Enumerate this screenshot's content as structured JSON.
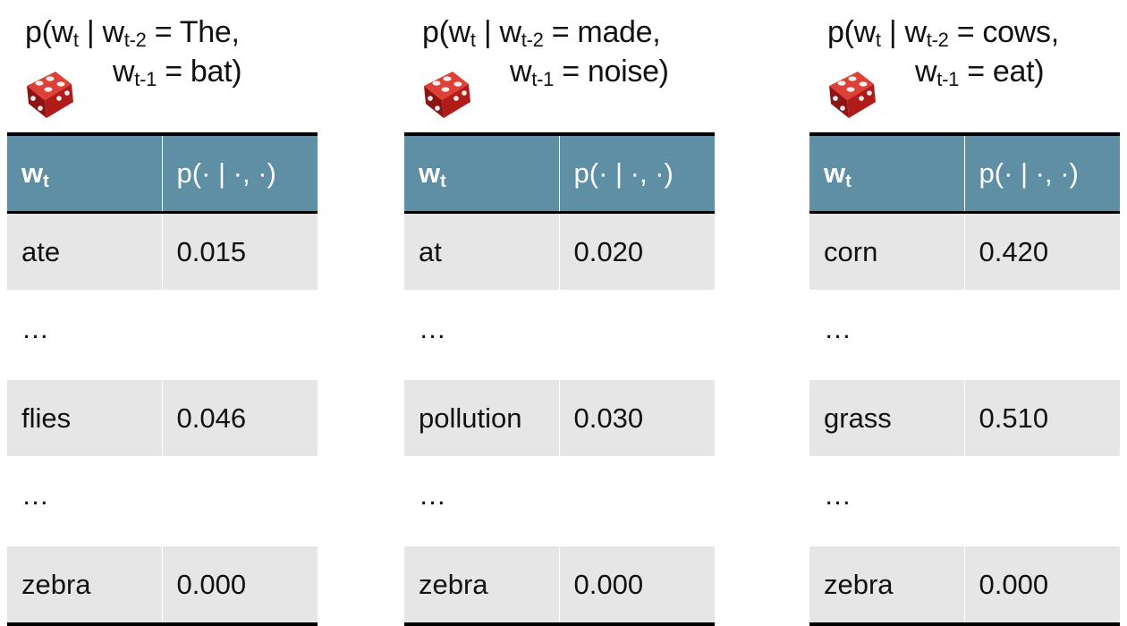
{
  "panels": [
    {
      "title": {
        "prefix": "p(w",
        "sub_t": "t",
        "bar": " | w",
        "sub_t2": "t-2",
        "val2": " = The,",
        "w1": "w",
        "sub_t1": "t-1",
        "val1": " = bat)"
      },
      "headers": {
        "col1": "w",
        "col1_sub": "t",
        "col2": "p(· | ·, ·)"
      },
      "rows": [
        {
          "word": "ate",
          "prob": "0.015"
        },
        {
          "word": "…",
          "prob": ""
        },
        {
          "word": "flies",
          "prob": "0.046"
        },
        {
          "word": "…",
          "prob": ""
        },
        {
          "word": "zebra",
          "prob": "0.000"
        }
      ]
    },
    {
      "title": {
        "prefix": "p(w",
        "sub_t": "t",
        "bar": " | w",
        "sub_t2": "t-2",
        "val2": " = made,",
        "w1": "w",
        "sub_t1": "t-1",
        "val1": " = noise)"
      },
      "headers": {
        "col1": "w",
        "col1_sub": "t",
        "col2": "p(· | ·, ·)"
      },
      "rows": [
        {
          "word": "at",
          "prob": "0.020"
        },
        {
          "word": "…",
          "prob": ""
        },
        {
          "word": "pollution",
          "prob": "0.030"
        },
        {
          "word": "…",
          "prob": ""
        },
        {
          "word": "zebra",
          "prob": "0.000"
        }
      ]
    },
    {
      "title": {
        "prefix": "p(w",
        "sub_t": "t",
        "bar": " | w",
        "sub_t2": "t-2",
        "val2": " = cows,",
        "w1": "w",
        "sub_t1": "t-1",
        "val1": " = eat)"
      },
      "headers": {
        "col1": "w",
        "col1_sub": "t",
        "col2": "p(· | ·, ·)"
      },
      "rows": [
        {
          "word": "corn",
          "prob": "0.420"
        },
        {
          "word": "…",
          "prob": ""
        },
        {
          "word": "grass",
          "prob": "0.510"
        },
        {
          "word": "…",
          "prob": ""
        },
        {
          "word": "zebra",
          "prob": "0.000"
        }
      ]
    }
  ],
  "icons": {
    "die": "red-die-icon"
  },
  "colors": {
    "header_bg": "#5e8fa5",
    "row_shade": "#e6e6e6",
    "die_red": "#c0201e"
  }
}
